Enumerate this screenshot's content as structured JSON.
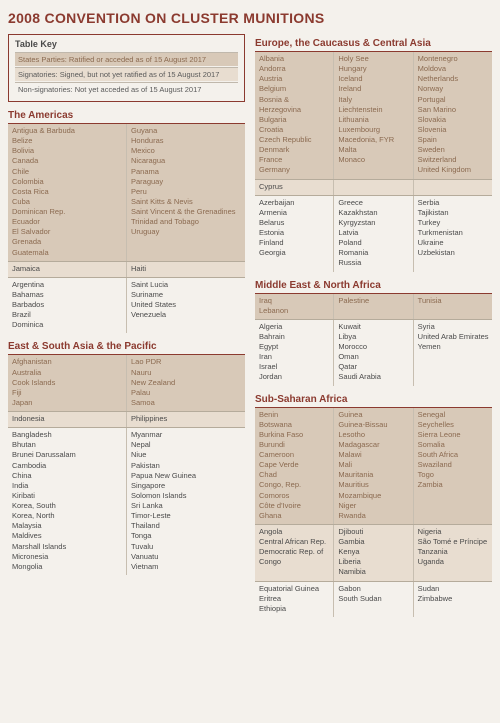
{
  "title": "2008 CONVENTION ON CLUSTER MUNITIONS",
  "key": {
    "heading": "Table Key",
    "ratified": "States Parties: Ratified or acceded as of 15 August 2017",
    "signatory": "Signatories: Signed, but not yet ratified as of 15 August 2017",
    "nonsig": "Non-signatories: Not yet acceded as of 15 August 2017"
  },
  "regions": {
    "americas": {
      "title": "The Americas",
      "bands": [
        {
          "type": "ratified",
          "cols": [
            [
              "Antigua & Barbuda",
              "Belize",
              "Bolivia",
              "Canada",
              "Chile",
              "Colombia",
              "Costa Rica",
              "Cuba",
              "Dominican Rep.",
              "Ecuador",
              "El Salvador",
              "Grenada",
              "Guatemala"
            ],
            [
              "Guyana",
              "Honduras",
              "Mexico",
              "Nicaragua",
              "Panama",
              "Paraguay",
              "Peru",
              "Saint Kitts & Nevis",
              "Saint Vincent & the Grenadines",
              "Trinidad and Tobago",
              "Uruguay"
            ]
          ]
        },
        {
          "type": "signatory",
          "cols": [
            [
              "Jamaica"
            ],
            [
              "Haiti"
            ]
          ]
        },
        {
          "type": "nonsig",
          "cols": [
            [
              "Argentina",
              "Bahamas",
              "Barbados",
              "Brazil",
              "Dominica"
            ],
            [
              "Saint Lucia",
              "Suriname",
              "United States",
              "Venezuela"
            ]
          ]
        }
      ]
    },
    "eastasia": {
      "title": "East & South Asia & the Pacific",
      "bands": [
        {
          "type": "ratified",
          "cols": [
            [
              "Afghanistan",
              "Australia",
              "Cook Islands",
              "Fiji",
              "Japan"
            ],
            [
              "Lao PDR",
              "Nauru",
              "New Zealand",
              "Palau",
              "Samoa"
            ]
          ]
        },
        {
          "type": "signatory",
          "cols": [
            [
              "Indonesia"
            ],
            [
              "Philippines"
            ]
          ]
        },
        {
          "type": "nonsig",
          "cols": [
            [
              "Bangladesh",
              "Bhutan",
              "Brunei Darussalam",
              "Cambodia",
              "China",
              "India",
              "Kiribati",
              "Korea, South",
              "Korea, North",
              "Malaysia",
              "Maldives",
              "Marshall Islands",
              "Micronesia",
              "Mongolia"
            ],
            [
              "Myanmar",
              "Nepal",
              "Niue",
              "Pakistan",
              "Papua New Guinea",
              "Singapore",
              "Solomon Islands",
              "Sri Lanka",
              "Timor-Leste",
              "Thailand",
              "Tonga",
              "Tuvalu",
              "Vanuatu",
              "Vietnam"
            ]
          ]
        }
      ]
    },
    "europe": {
      "title": "Europe, the Caucasus & Central Asia",
      "bands": [
        {
          "type": "ratified",
          "cols": [
            [
              "Albania",
              "Andorra",
              "Austria",
              "Belgium",
              "Bosnia & Herzegovina",
              "Bulgaria",
              "Croatia",
              "Czech Republic",
              "Denmark",
              "France",
              "Germany"
            ],
            [
              "Holy See",
              "Hungary",
              "Iceland",
              "Ireland",
              "Italy",
              "Liechtenstein",
              "Lithuania",
              "Luxembourg",
              "Macedonia, FYR",
              "Malta",
              "Monaco"
            ],
            [
              "Montenegro",
              "Moldova",
              "Netherlands",
              "Norway",
              "Portugal",
              "San Marino",
              "Slovakia",
              "Slovenia",
              "Spain",
              "Sweden",
              "Switzerland",
              "United Kingdom"
            ]
          ]
        },
        {
          "type": "signatory",
          "cols": [
            [
              "Cyprus"
            ],
            [],
            []
          ]
        },
        {
          "type": "nonsig",
          "cols": [
            [
              "Azerbaijan",
              "Armenia",
              "Belarus",
              "Estonia",
              "Finland",
              "Georgia"
            ],
            [
              "Greece",
              "Kazakhstan",
              "Kyrgyzstan",
              "Latvia",
              "Poland",
              "Romania",
              "Russia"
            ],
            [
              "Serbia",
              "Tajikistan",
              "Turkey",
              "Turkmenistan",
              "Ukraine",
              "Uzbekistan"
            ]
          ]
        }
      ]
    },
    "mena": {
      "title": "Middle East & North Africa",
      "bands": [
        {
          "type": "ratified",
          "cols": [
            [
              "Iraq",
              "Lebanon"
            ],
            [
              "Palestine"
            ],
            [
              "Tunisia"
            ]
          ]
        },
        {
          "type": "nonsig",
          "cols": [
            [
              "Algeria",
              "Bahrain",
              "Egypt",
              "Iran",
              "Israel",
              "Jordan"
            ],
            [
              "Kuwait",
              "Libya",
              "Morocco",
              "Oman",
              "Qatar",
              "Saudi Arabia"
            ],
            [
              "Syria",
              "United Arab Emirates",
              "Yemen"
            ]
          ]
        }
      ]
    },
    "ssa": {
      "title": "Sub-Saharan Africa",
      "bands": [
        {
          "type": "ratified",
          "cols": [
            [
              "Benin",
              "Botswana",
              "Burkina Faso",
              "Burundi",
              "Cameroon",
              "Cape Verde",
              "Chad",
              "Congo, Rep.",
              "Comoros",
              "Côte d'Ivoire",
              "Ghana"
            ],
            [
              "Guinea",
              "Guinea-Bissau",
              "Lesotho",
              "Madagascar",
              "Malawi",
              "Mali",
              "Mauritania",
              "Mauritius",
              "Mozambique",
              "Niger",
              "Rwanda"
            ],
            [
              "Senegal",
              "Seychelles",
              "Sierra Leone",
              "Somalia",
              "South Africa",
              "Swaziland",
              "Togo",
              "Zambia"
            ]
          ]
        },
        {
          "type": "signatory",
          "cols": [
            [
              "Angola",
              "Central African Rep.",
              "Democratic Rep. of Congo"
            ],
            [
              "Djibouti",
              "Gambia",
              "Kenya",
              "Liberia",
              "Namibia"
            ],
            [
              "Nigeria",
              "São Tomé e Príncipe",
              "Tanzania",
              "Uganda"
            ]
          ]
        },
        {
          "type": "nonsig",
          "cols": [
            [
              "Equatorial Guinea",
              "Eritrea",
              "Ethiopia"
            ],
            [
              "Gabon",
              "South Sudan"
            ],
            [
              "Sudan",
              "Zimbabwe"
            ]
          ]
        }
      ]
    }
  }
}
